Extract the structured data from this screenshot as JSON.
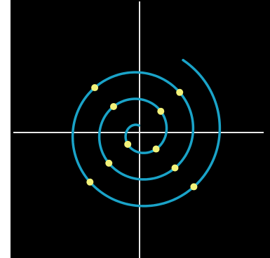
{
  "colors": {
    "background": "#000000",
    "axes": "#e8e8e8",
    "spiral": "#1aa3c8",
    "points": "#f2f27a"
  },
  "spiral": {
    "center_x": 0,
    "center_y": 0,
    "start_radius": 0,
    "growth_per_radian": 6.06,
    "start_angle_deg": 95,
    "end_angle_deg": 1140,
    "point_angles_deg": [
      225,
      225,
      315,
      315,
      405,
      405,
      495,
      495,
      585,
      585,
      675,
      675,
      765,
      765,
      855,
      855,
      945,
      945,
      1035,
      1035
    ]
  }
}
